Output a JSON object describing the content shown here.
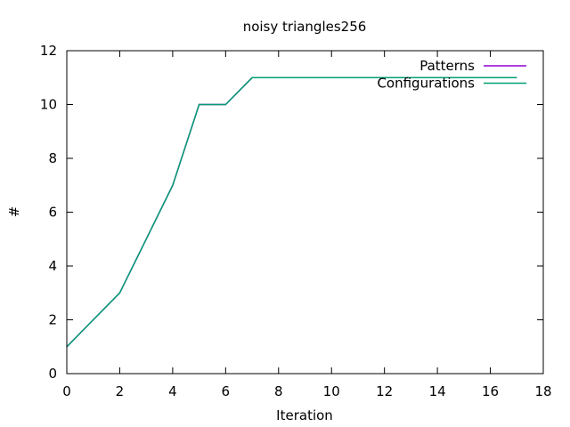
{
  "chart_data": {
    "type": "line",
    "title": "noisy triangles256",
    "xlabel": "Iteration",
    "ylabel": "#",
    "xlim": [
      0,
      18
    ],
    "ylim": [
      0,
      12
    ],
    "xticks": [
      "0",
      "2",
      "4",
      "6",
      "8",
      "10",
      "12",
      "14",
      "16",
      "18"
    ],
    "yticks": [
      "0",
      "2",
      "4",
      "6",
      "8",
      "10",
      "12"
    ],
    "grid": false,
    "legend_position": "top-right",
    "series": [
      {
        "name": "Patterns",
        "color": "#9400d3",
        "x": [
          0,
          1,
          2,
          3,
          4,
          5,
          6,
          7,
          8,
          9,
          10,
          11,
          12,
          13,
          14,
          15,
          16,
          17
        ],
        "y": [
          1,
          2,
          3,
          5,
          7,
          10,
          10,
          11,
          11,
          11,
          11,
          11,
          11,
          11,
          11,
          11,
          11,
          11
        ]
      },
      {
        "name": "Configurations",
        "color": "#009e73",
        "x": [
          0,
          1,
          2,
          3,
          4,
          5,
          6,
          7,
          8,
          9,
          10,
          11,
          12,
          13,
          14,
          15,
          16,
          17
        ],
        "y": [
          1,
          2,
          3,
          5,
          7,
          10,
          10,
          11,
          11,
          11,
          11,
          11,
          11,
          11,
          11,
          11,
          11,
          11
        ]
      }
    ]
  }
}
